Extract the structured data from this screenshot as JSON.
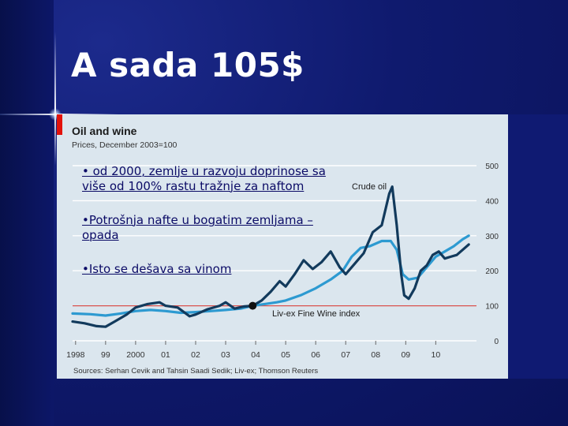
{
  "slide": {
    "title": "A sada 105$",
    "bullets": [
      "• od 2000, zemlje u razvoju doprinose sa više od 100% rastu tražnje za naftom",
      "•Potrošnja nafte u bogatim zemljama – opada",
      "•Isto se dešava sa vinom"
    ]
  },
  "colors": {
    "background": "#0c1660",
    "chart_panel": "#dbe6ee",
    "accent_red": "#e3120b",
    "crude_oil": "#123a5c",
    "wine_index": "#2d9ad1",
    "baseline": "#d9534f",
    "bullet_text": "#0b0b66"
  },
  "chart_data": {
    "type": "line",
    "title": "Oil and wine",
    "subtitle": "Prices, December 2003=100",
    "source": "Sources: Serhan Cevik and Tahsin Saadi Sedik; Liv-ex; Thomson Reuters",
    "x_tick_labels": [
      "1998",
      "99",
      "2000",
      "01",
      "02",
      "03",
      "04",
      "05",
      "06",
      "07",
      "08",
      "09",
      "10"
    ],
    "x_tick_values": [
      1998,
      1999,
      2000,
      2001,
      2002,
      2003,
      2004,
      2005,
      2006,
      2007,
      2008,
      2009,
      2010
    ],
    "xlim": [
      1997.9,
      2011.2
    ],
    "ylim": [
      0,
      500
    ],
    "y_ticks": [
      0,
      100,
      200,
      300,
      400,
      500
    ],
    "y_axis_side": "right",
    "grid": true,
    "reference_line": 100,
    "marker": {
      "x": 2003.9,
      "y": 100
    },
    "series": [
      {
        "name": "Crude oil",
        "points": [
          [
            1997.9,
            55
          ],
          [
            1998.3,
            50
          ],
          [
            1998.7,
            42
          ],
          [
            1999.0,
            40
          ],
          [
            1999.3,
            55
          ],
          [
            1999.7,
            75
          ],
          [
            2000.0,
            95
          ],
          [
            2000.4,
            105
          ],
          [
            2000.8,
            110
          ],
          [
            2001.0,
            100
          ],
          [
            2001.4,
            95
          ],
          [
            2001.8,
            70
          ],
          [
            2002.0,
            75
          ],
          [
            2002.4,
            90
          ],
          [
            2002.8,
            100
          ],
          [
            2003.0,
            110
          ],
          [
            2003.3,
            92
          ],
          [
            2003.6,
            98
          ],
          [
            2003.9,
            100
          ],
          [
            2004.2,
            115
          ],
          [
            2004.5,
            140
          ],
          [
            2004.8,
            170
          ],
          [
            2005.0,
            155
          ],
          [
            2005.3,
            190
          ],
          [
            2005.6,
            230
          ],
          [
            2005.9,
            205
          ],
          [
            2006.2,
            225
          ],
          [
            2006.5,
            255
          ],
          [
            2006.8,
            210
          ],
          [
            2007.0,
            190
          ],
          [
            2007.3,
            220
          ],
          [
            2007.6,
            250
          ],
          [
            2007.9,
            310
          ],
          [
            2008.2,
            330
          ],
          [
            2008.45,
            420
          ],
          [
            2008.55,
            440
          ],
          [
            2008.7,
            330
          ],
          [
            2008.85,
            190
          ],
          [
            2008.95,
            130
          ],
          [
            2009.1,
            120
          ],
          [
            2009.3,
            150
          ],
          [
            2009.5,
            200
          ],
          [
            2009.7,
            215
          ],
          [
            2009.9,
            245
          ],
          [
            2010.1,
            255
          ],
          [
            2010.3,
            235
          ],
          [
            2010.5,
            240
          ],
          [
            2010.7,
            245
          ],
          [
            2010.9,
            260
          ],
          [
            2011.1,
            275
          ]
        ]
      },
      {
        "name": "Liv-ex Fine Wine index",
        "points": [
          [
            1997.9,
            78
          ],
          [
            1998.5,
            76
          ],
          [
            1999.0,
            72
          ],
          [
            1999.5,
            78
          ],
          [
            2000.0,
            85
          ],
          [
            2000.5,
            88
          ],
          [
            2001.0,
            85
          ],
          [
            2001.5,
            80
          ],
          [
            2002.0,
            82
          ],
          [
            2002.5,
            85
          ],
          [
            2003.0,
            88
          ],
          [
            2003.5,
            92
          ],
          [
            2003.9,
            100
          ],
          [
            2004.3,
            105
          ],
          [
            2004.7,
            110
          ],
          [
            2005.0,
            115
          ],
          [
            2005.5,
            130
          ],
          [
            2006.0,
            150
          ],
          [
            2006.5,
            175
          ],
          [
            2006.9,
            200
          ],
          [
            2007.2,
            240
          ],
          [
            2007.5,
            265
          ],
          [
            2007.8,
            270
          ],
          [
            2008.2,
            285
          ],
          [
            2008.5,
            285
          ],
          [
            2008.7,
            260
          ],
          [
            2008.9,
            190
          ],
          [
            2009.1,
            175
          ],
          [
            2009.4,
            180
          ],
          [
            2009.7,
            210
          ],
          [
            2010.0,
            240
          ],
          [
            2010.3,
            255
          ],
          [
            2010.6,
            270
          ],
          [
            2010.9,
            290
          ],
          [
            2011.1,
            300
          ]
        ]
      }
    ]
  }
}
